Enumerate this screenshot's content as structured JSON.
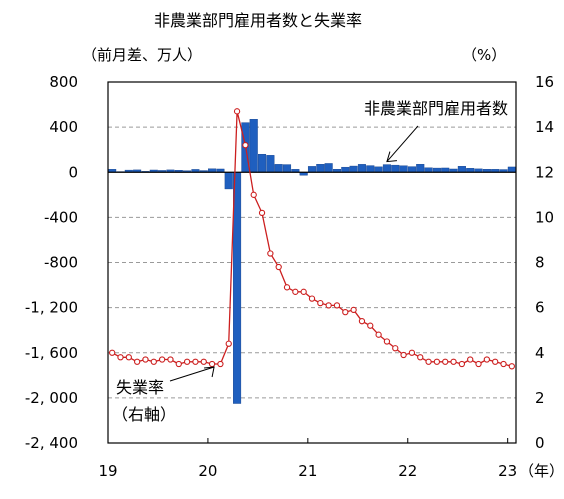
{
  "chart_data": {
    "type": "bar+line",
    "title": "非農業部門雇用者数と失業率",
    "left_axis": {
      "unit_label": "（前月差、万人）",
      "ticks": [
        "800",
        "400",
        "0",
        "-400",
        "-800",
        "-1, 200",
        "-1, 600",
        "-2, 000",
        "-2, 400"
      ],
      "tick_values": [
        800,
        400,
        0,
        -400,
        -800,
        -1200,
        -1600,
        -2000,
        -2400
      ],
      "range": [
        -2400,
        800
      ]
    },
    "right_axis": {
      "unit_label": "（%）",
      "ticks": [
        "16",
        "14",
        "12",
        "10",
        "8",
        "6",
        "4",
        "2",
        "0"
      ],
      "tick_values": [
        16,
        14,
        12,
        10,
        8,
        6,
        4,
        2,
        0
      ],
      "range": [
        0,
        16
      ]
    },
    "x_axis": {
      "ticks": [
        "19",
        "20",
        "21",
        "22",
        "23"
      ],
      "tick_index": [
        0,
        12,
        24,
        36,
        48
      ],
      "unit_label": "（年）"
    },
    "grid": "horizontal-dashed",
    "series": [
      {
        "name": "非農業部門雇用者数",
        "axis": "left",
        "type": "bar",
        "color": "#1f5fbf",
        "values": [
          26,
          6,
          19,
          21,
          8,
          20,
          16,
          21,
          18,
          14,
          25,
          15,
          31,
          29,
          -148,
          -2050,
          440,
          470,
          160,
          150,
          70,
          68,
          26,
          -27,
          52,
          71,
          78,
          27,
          45,
          55,
          70,
          59,
          48,
          68,
          63,
          58,
          50,
          71,
          40,
          37,
          38,
          29,
          53,
          35,
          30,
          27,
          26,
          24,
          47
        ]
      },
      {
        "name": "失業率",
        "axis": "right",
        "type": "line",
        "color": "#cc1f1f",
        "values": [
          4.0,
          3.8,
          3.8,
          3.6,
          3.7,
          3.6,
          3.7,
          3.7,
          3.5,
          3.6,
          3.6,
          3.6,
          3.5,
          3.5,
          4.4,
          14.7,
          13.2,
          11.0,
          10.2,
          8.4,
          7.8,
          6.9,
          6.7,
          6.7,
          6.4,
          6.2,
          6.1,
          6.1,
          5.8,
          5.9,
          5.4,
          5.2,
          4.8,
          4.5,
          4.2,
          3.9,
          4.0,
          3.8,
          3.6,
          3.6,
          3.6,
          3.6,
          3.5,
          3.7,
          3.5,
          3.7,
          3.6,
          3.5,
          3.4
        ]
      }
    ],
    "annotations": [
      {
        "text": "非農業部門雇用者数",
        "target_series": "非農業部門雇用者数",
        "target_index": 33
      },
      {
        "text": "失業率",
        "text2": "（右軸）",
        "target_series": "失業率",
        "target_index": 12
      }
    ]
  }
}
